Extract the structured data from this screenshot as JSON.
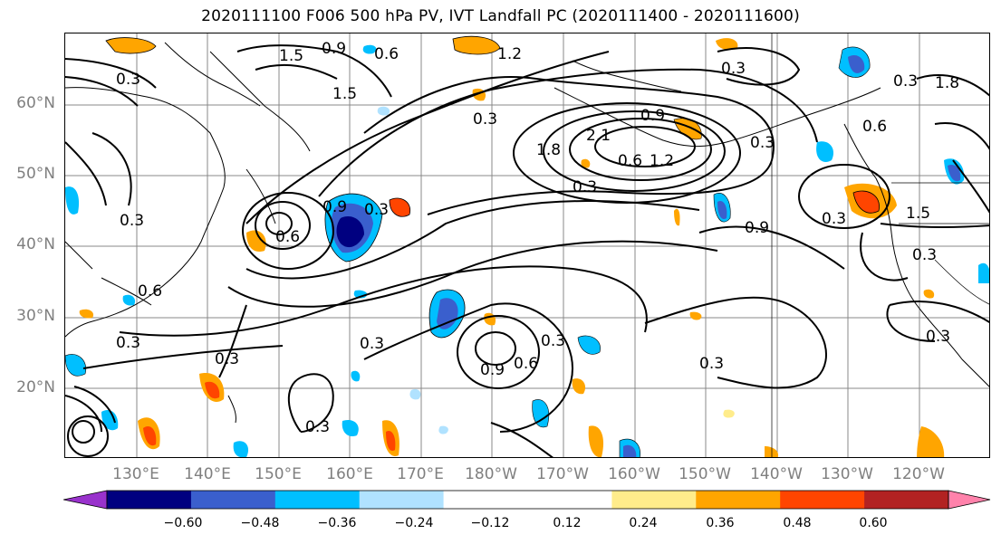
{
  "title": "2020111100 F006 500 hPa PV, IVT Landfall PC (2020111400 - 2020111600)",
  "map": {
    "projection": "equirectangular",
    "extent_lon": [
      120,
      250
    ],
    "extent_lat": [
      10,
      70
    ],
    "lat_labels": [
      "60°N",
      "50°N",
      "40°N",
      "30°N",
      "20°N"
    ],
    "lon_labels": [
      "130°E",
      "140°E",
      "150°E",
      "160°E",
      "170°E",
      "180°W",
      "170°W",
      "160°W",
      "150°W",
      "140°W",
      "130°W",
      "120°W"
    ],
    "tick_label_color": "#7f7f7f",
    "gridlines": true,
    "contour_labels": [
      "1.5",
      "0.9",
      "0.6",
      "1.2",
      "0.3",
      "0.3",
      "1.5",
      "0.3",
      "2.1",
      "1.8",
      "0.9",
      "0.6",
      "1.2",
      "0.3",
      "0.3",
      "0.3",
      "0.6",
      "0.3",
      "0.9",
      "0.6",
      "0.3",
      "0.3",
      "0.3",
      "0.3",
      "0.3",
      "0.9",
      "0.6",
      "0.3",
      "0.3",
      "0.6",
      "0.9",
      "0.3",
      "1.5",
      "1.8",
      "0.3",
      "0.3"
    ]
  },
  "colorbar": {
    "colors": [
      "#9932cc",
      "#000080",
      "#3a5fcd",
      "#00bfff",
      "#b0e2ff",
      "#ffffff",
      "#ffffff",
      "#ffec8b",
      "#ffa500",
      "#ff4500",
      "#b22222",
      "#ff82ab"
    ],
    "ticks": [
      "−0.60",
      "−0.48",
      "−0.36",
      "−0.24",
      "−0.12",
      "0.12",
      "0.24",
      "0.36",
      "0.48",
      "0.60"
    ],
    "extend": "both"
  }
}
